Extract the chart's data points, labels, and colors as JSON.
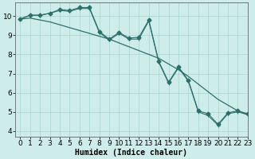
{
  "xlabel": "Humidex (Indice chaleur)",
  "bg_color": "#ceecea",
  "grid_color": "#aad4d0",
  "line_color": "#2d7068",
  "xlim": [
    -0.5,
    23
  ],
  "ylim": [
    3.7,
    10.7
  ],
  "yticks": [
    4,
    5,
    6,
    7,
    8,
    9,
    10
  ],
  "xticks": [
    0,
    1,
    2,
    3,
    4,
    5,
    6,
    7,
    8,
    9,
    10,
    11,
    12,
    13,
    14,
    15,
    16,
    17,
    18,
    19,
    20,
    21,
    22,
    23
  ],
  "series1_x": [
    0,
    1,
    2,
    3,
    4,
    5,
    6,
    7,
    8,
    9,
    10,
    11,
    12,
    13,
    14,
    15,
    16,
    17,
    18,
    19,
    20,
    21,
    22,
    23
  ],
  "series1_y": [
    9.85,
    10.05,
    10.05,
    10.15,
    10.35,
    10.3,
    10.45,
    10.45,
    9.2,
    8.8,
    9.15,
    8.85,
    8.9,
    9.8,
    7.65,
    6.55,
    7.35,
    6.65,
    5.05,
    4.9,
    4.35,
    4.95,
    5.05,
    4.9
  ],
  "series2_x": [
    0,
    1,
    2,
    3,
    4,
    5,
    6,
    7,
    8,
    9,
    10,
    11,
    12,
    13,
    14,
    15,
    16,
    17,
    18,
    19,
    20,
    21,
    22,
    23
  ],
  "series2_y": [
    9.85,
    9.9,
    9.8,
    9.7,
    9.55,
    9.4,
    9.25,
    9.1,
    8.95,
    8.8,
    8.6,
    8.4,
    8.2,
    8.0,
    7.8,
    7.5,
    7.2,
    6.85,
    6.45,
    6.05,
    5.65,
    5.35,
    5.05,
    4.85
  ],
  "series3_x": [
    0,
    1,
    2,
    3,
    4,
    5,
    6,
    7,
    8,
    9,
    10,
    11,
    12,
    13,
    14,
    15,
    16,
    17,
    18,
    19,
    20,
    21,
    22,
    23
  ],
  "series3_y": [
    9.85,
    10.05,
    10.05,
    10.15,
    10.3,
    10.25,
    10.4,
    10.4,
    9.15,
    8.75,
    9.1,
    8.8,
    8.8,
    9.75,
    7.6,
    6.5,
    7.3,
    6.6,
    5.0,
    4.8,
    4.3,
    4.9,
    5.0,
    4.85
  ],
  "xlabel_fontsize": 7,
  "tick_fontsize": 6.5
}
